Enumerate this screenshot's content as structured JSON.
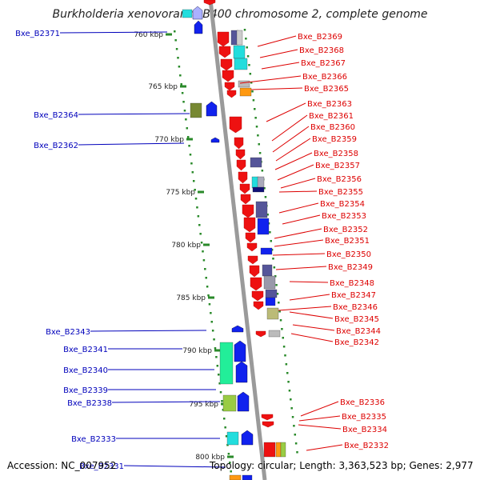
{
  "title": "Burkholderia xenovorans LB400 chromosome 2, complete genome",
  "footer": {
    "accession": "Accession: NC_007952",
    "topology": "Topology: circular; Length: 3,363,523 bp; Genes: 2,977"
  },
  "colors": {
    "backbone": "#9a9a9a",
    "tick": "#2a8a2a",
    "left_label": "#0000bb",
    "right_label": "#dd0000",
    "red": "#ee1111",
    "blue": "#1122ee",
    "cyan": "#22dddd",
    "slate": "#555599",
    "olive": "#778833",
    "orange": "#ff9911",
    "grey": "#bbbbbb",
    "khaki": "#bbbb77",
    "mint": "#22ee99",
    "lime": "#99cc44"
  },
  "ticks": [
    "760 kbp",
    "765 kbp",
    "770 kbp",
    "775 kbp",
    "780 kbp",
    "785 kbp",
    "790 kbp",
    "795 kbp",
    "800 kbp"
  ],
  "left_genes": [
    "Bxe_B2371",
    "Bxe_B2364",
    "Bxe_B2362",
    "Bxe_B2343",
    "Bxe_B2341",
    "Bxe_B2340",
    "Bxe_B2339",
    "Bxe_B2338",
    "Bxe_B2333",
    "Bxe_B2331"
  ],
  "right_genes": [
    "Bxe_B2369",
    "Bxe_B2368",
    "Bxe_B2367",
    "Bxe_B2366",
    "Bxe_B2365",
    "Bxe_B2363",
    "Bxe_B2361",
    "Bxe_B2360",
    "Bxe_B2359",
    "Bxe_B2358",
    "Bxe_B2357",
    "Bxe_B2356",
    "Bxe_B2355",
    "Bxe_B2354",
    "Bxe_B2353",
    "Bxe_B2352",
    "Bxe_B2351",
    "Bxe_B2350",
    "Bxe_B2349",
    "Bxe_B2348",
    "Bxe_B2347",
    "Bxe_B2346",
    "Bxe_B2345",
    "Bxe_B2344",
    "Bxe_B2342",
    "Bxe_B2336",
    "Bxe_B2335",
    "Bxe_B2334",
    "Bxe_B2332"
  ]
}
